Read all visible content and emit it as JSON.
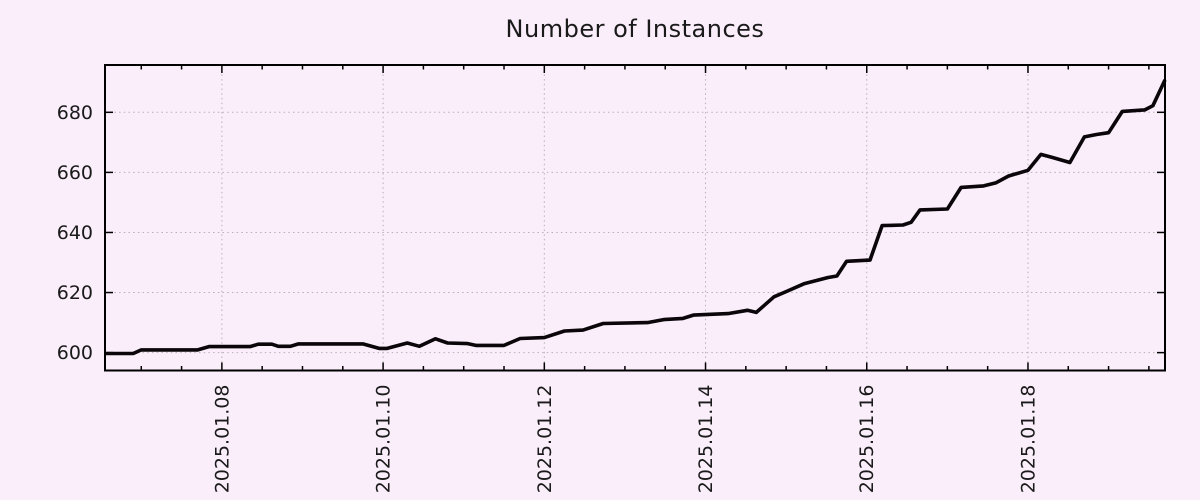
{
  "chart_data": {
    "type": "line",
    "title": "Number of Instances",
    "x_unit": "day of January 2025 (fractional)",
    "xlim": [
      6.55,
      19.7
    ],
    "ylim": [
      594.05,
      695.75
    ],
    "grid": "dotted",
    "legend": "none",
    "x_ticks": [
      {
        "value": 8,
        "label": "2025.01.08"
      },
      {
        "value": 10,
        "label": "2025.01.10"
      },
      {
        "value": 12,
        "label": "2025.01.12"
      },
      {
        "value": 14,
        "label": "2025.01.14"
      },
      {
        "value": 16,
        "label": "2025.01.16"
      },
      {
        "value": 18,
        "label": "2025.01.18"
      }
    ],
    "x_tick_label_rotation_deg": -90,
    "x_minor_tick_step": 0.5,
    "y_ticks": [
      600,
      620,
      640,
      660,
      680
    ],
    "series": [
      {
        "name": "Number of Instances",
        "points": [
          [
            6.55,
            599.7
          ],
          [
            6.9,
            599.7
          ],
          [
            7.0,
            600.9
          ],
          [
            7.7,
            600.9
          ],
          [
            7.84,
            602.0
          ],
          [
            8.35,
            602.0
          ],
          [
            8.45,
            602.8
          ],
          [
            8.62,
            602.8
          ],
          [
            8.7,
            602.1
          ],
          [
            8.85,
            602.1
          ],
          [
            8.95,
            602.9
          ],
          [
            9.75,
            602.9
          ],
          [
            9.95,
            601.4
          ],
          [
            10.05,
            601.4
          ],
          [
            10.3,
            603.2
          ],
          [
            10.45,
            602.1
          ],
          [
            10.65,
            604.6
          ],
          [
            10.8,
            603.2
          ],
          [
            11.05,
            603.0
          ],
          [
            11.15,
            602.4
          ],
          [
            11.5,
            602.4
          ],
          [
            11.7,
            604.7
          ],
          [
            12.0,
            605.0
          ],
          [
            12.25,
            607.2
          ],
          [
            12.48,
            607.5
          ],
          [
            12.73,
            609.7
          ],
          [
            13.28,
            610.0
          ],
          [
            13.48,
            611.0
          ],
          [
            13.72,
            611.4
          ],
          [
            13.85,
            612.5
          ],
          [
            14.28,
            613.0
          ],
          [
            14.52,
            614.1
          ],
          [
            14.63,
            613.4
          ],
          [
            14.85,
            618.6
          ],
          [
            15.0,
            620.3
          ],
          [
            15.22,
            622.9
          ],
          [
            15.52,
            625.0
          ],
          [
            15.63,
            625.5
          ],
          [
            15.75,
            630.4
          ],
          [
            16.04,
            630.8
          ],
          [
            16.19,
            642.3
          ],
          [
            16.45,
            642.5
          ],
          [
            16.55,
            643.4
          ],
          [
            16.66,
            647.5
          ],
          [
            17.0,
            647.8
          ],
          [
            17.17,
            655.0
          ],
          [
            17.45,
            655.5
          ],
          [
            17.6,
            656.5
          ],
          [
            17.76,
            658.8
          ],
          [
            18.0,
            660.7
          ],
          [
            18.16,
            666.0
          ],
          [
            18.3,
            665.0
          ],
          [
            18.52,
            663.3
          ],
          [
            18.7,
            671.8
          ],
          [
            18.85,
            672.6
          ],
          [
            19.0,
            673.2
          ],
          [
            19.17,
            680.3
          ],
          [
            19.45,
            680.8
          ],
          [
            19.55,
            682.2
          ],
          [
            19.7,
            690.8
          ]
        ]
      }
    ],
    "colors": {
      "background": "#faeefa",
      "line": "#0a060a",
      "grid": "#b8b0b8",
      "border": "#000000",
      "text": "#1a1a1a"
    }
  }
}
